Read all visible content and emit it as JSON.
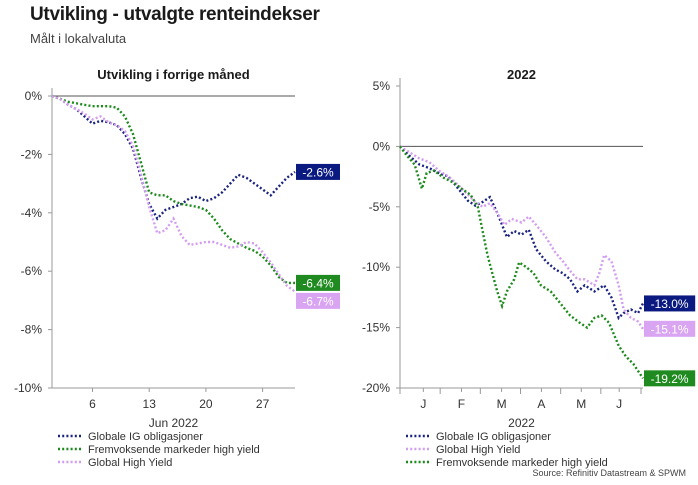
{
  "header": {
    "title": "Utvikling - utvalgte renteindekser",
    "subtitle": "Målt i lokalvaluta"
  },
  "footer": {
    "source": "Source: Refinitiv Datastream & SPWM"
  },
  "colors": {
    "ig": "#1a237e",
    "em_hy": "#1a8a1a",
    "global_hy": "#d49cf0",
    "end_ig": "#0b1a80",
    "end_em": "#1f8a1f",
    "end_hy": "#d9a4f2"
  },
  "chart_data": [
    {
      "type": "line",
      "title": "Utvikling i forrige måned",
      "xlabel": "Jun 2022",
      "xlim": [
        1,
        31
      ],
      "ylim": [
        -10,
        0
      ],
      "yticks": [
        0,
        -2,
        -4,
        -6,
        -8,
        -10
      ],
      "ytick_labels": [
        "0%",
        "-2%",
        "-4%",
        "-6%",
        "-8%",
        "-10%"
      ],
      "xticks": [
        6,
        13,
        20,
        27
      ],
      "xtick_labels": [
        "6",
        "13",
        "20",
        "27"
      ],
      "legend": [
        "Globale IG obligasjoner",
        "Fremvoksende markeder high yield",
        "Global High Yield"
      ],
      "series": [
        {
          "name": "Globale IG obligasjoner",
          "color_key": "ig",
          "end_label": "-2.6%",
          "points": [
            [
              1,
              0
            ],
            [
              2,
              -0.1
            ],
            [
              3,
              -0.3
            ],
            [
              4,
              -0.45
            ],
            [
              5,
              -0.7
            ],
            [
              6,
              -0.95
            ],
            [
              7,
              -0.85
            ],
            [
              8,
              -0.9
            ],
            [
              9,
              -1.0
            ],
            [
              10,
              -1.3
            ],
            [
              11,
              -1.8
            ],
            [
              12,
              -2.8
            ],
            [
              13,
              -3.7
            ],
            [
              14,
              -4.2
            ],
            [
              15,
              -3.9
            ],
            [
              16,
              -3.8
            ],
            [
              17,
              -3.7
            ],
            [
              18,
              -3.5
            ],
            [
              19,
              -3.45
            ],
            [
              20,
              -3.6
            ],
            [
              21,
              -3.5
            ],
            [
              22,
              -3.3
            ],
            [
              23,
              -3.0
            ],
            [
              24,
              -2.7
            ],
            [
              25,
              -2.8
            ],
            [
              26,
              -3.0
            ],
            [
              27,
              -3.2
            ],
            [
              28,
              -3.4
            ],
            [
              29,
              -3.1
            ],
            [
              30,
              -2.8
            ],
            [
              31,
              -2.6
            ]
          ]
        },
        {
          "name": "Fremvoksende markeder high yield",
          "color_key": "em_hy",
          "end_label": "-6.4%",
          "points": [
            [
              1,
              0
            ],
            [
              2,
              -0.1
            ],
            [
              3,
              -0.2
            ],
            [
              4,
              -0.25
            ],
            [
              5,
              -0.3
            ],
            [
              6,
              -0.35
            ],
            [
              7,
              -0.35
            ],
            [
              8,
              -0.35
            ],
            [
              9,
              -0.4
            ],
            [
              10,
              -0.7
            ],
            [
              11,
              -1.3
            ],
            [
              12,
              -2.3
            ],
            [
              13,
              -3.3
            ],
            [
              14,
              -3.4
            ],
            [
              15,
              -3.4
            ],
            [
              16,
              -3.6
            ],
            [
              17,
              -3.7
            ],
            [
              18,
              -3.75
            ],
            [
              19,
              -3.8
            ],
            [
              20,
              -3.9
            ],
            [
              21,
              -4.2
            ],
            [
              22,
              -4.6
            ],
            [
              23,
              -4.9
            ],
            [
              24,
              -5.05
            ],
            [
              25,
              -5.2
            ],
            [
              26,
              -5.3
            ],
            [
              27,
              -5.5
            ],
            [
              28,
              -5.8
            ],
            [
              29,
              -6.2
            ],
            [
              30,
              -6.4
            ],
            [
              31,
              -6.4
            ]
          ]
        },
        {
          "name": "Global High Yield",
          "color_key": "global_hy",
          "end_label": "-6.7%",
          "points": [
            [
              1,
              0
            ],
            [
              2,
              -0.1
            ],
            [
              3,
              -0.3
            ],
            [
              4,
              -0.45
            ],
            [
              5,
              -0.6
            ],
            [
              6,
              -0.8
            ],
            [
              7,
              -0.7
            ],
            [
              8,
              -0.9
            ],
            [
              9,
              -1.0
            ],
            [
              10,
              -1.2
            ],
            [
              11,
              -1.7
            ],
            [
              12,
              -2.7
            ],
            [
              13,
              -3.8
            ],
            [
              14,
              -4.7
            ],
            [
              15,
              -4.6
            ],
            [
              16,
              -4.2
            ],
            [
              17,
              -4.8
            ],
            [
              18,
              -5.1
            ],
            [
              19,
              -5.05
            ],
            [
              20,
              -5.0
            ],
            [
              21,
              -5.0
            ],
            [
              22,
              -5.1
            ],
            [
              23,
              -5.2
            ],
            [
              24,
              -5.15
            ],
            [
              25,
              -5.0
            ],
            [
              26,
              -5.05
            ],
            [
              27,
              -5.35
            ],
            [
              28,
              -5.7
            ],
            [
              29,
              -6.1
            ],
            [
              30,
              -6.5
            ],
            [
              31,
              -6.7
            ]
          ]
        }
      ]
    },
    {
      "type": "line",
      "title": "2022",
      "xlabel": "2022",
      "xlim": [
        0,
        1
      ],
      "ylim": [
        -20,
        5
      ],
      "yticks": [
        5,
        0,
        -5,
        -10,
        -15,
        -20
      ],
      "ytick_labels": [
        "5%",
        "0%",
        "-5%",
        "-10%",
        "-15%",
        "-20%"
      ],
      "xtick_positions": [
        0.096,
        0.253,
        0.418,
        0.582,
        0.746,
        0.902
      ],
      "xtick_labels": [
        "J",
        "F",
        "M",
        "A",
        "M",
        "J"
      ],
      "legend": [
        "Globale IG obligasjoner",
        "Global High Yield",
        "Fremvoksende markeder high yield"
      ],
      "series": [
        {
          "name": "Globale IG obligasjoner",
          "color_key": "ig",
          "end_label": "-13.0%",
          "points": [
            [
              0,
              0
            ],
            [
              0.04,
              -0.8
            ],
            [
              0.08,
              -1.5
            ],
            [
              0.12,
              -1.8
            ],
            [
              0.16,
              -2.2
            ],
            [
              0.2,
              -2.5
            ],
            [
              0.24,
              -3.5
            ],
            [
              0.28,
              -4.5
            ],
            [
              0.31,
              -4.9
            ],
            [
              0.34,
              -4.6
            ],
            [
              0.37,
              -4.2
            ],
            [
              0.4,
              -5.5
            ],
            [
              0.42,
              -6.5
            ],
            [
              0.44,
              -7.5
            ],
            [
              0.47,
              -7.0
            ],
            [
              0.5,
              -7.3
            ],
            [
              0.53,
              -6.9
            ],
            [
              0.56,
              -8.5
            ],
            [
              0.6,
              -9.5
            ],
            [
              0.64,
              -10.2
            ],
            [
              0.67,
              -10.5
            ],
            [
              0.7,
              -11.0
            ],
            [
              0.73,
              -12.0
            ],
            [
              0.76,
              -11.5
            ],
            [
              0.8,
              -12.0
            ],
            [
              0.84,
              -11.5
            ],
            [
              0.87,
              -12.5
            ],
            [
              0.9,
              -14.2
            ],
            [
              0.92,
              -13.8
            ],
            [
              0.95,
              -13.5
            ],
            [
              0.98,
              -13.8
            ],
            [
              1.0,
              -13.0
            ]
          ]
        },
        {
          "name": "Global High Yield",
          "color_key": "global_hy",
          "end_label": "-15.1%",
          "points": [
            [
              0,
              0
            ],
            [
              0.04,
              -0.5
            ],
            [
              0.08,
              -1.0
            ],
            [
              0.12,
              -1.3
            ],
            [
              0.16,
              -2.0
            ],
            [
              0.2,
              -2.5
            ],
            [
              0.24,
              -3.2
            ],
            [
              0.28,
              -4.0
            ],
            [
              0.31,
              -4.6
            ],
            [
              0.34,
              -5.0
            ],
            [
              0.37,
              -4.7
            ],
            [
              0.4,
              -5.5
            ],
            [
              0.43,
              -6.5
            ],
            [
              0.46,
              -6.0
            ],
            [
              0.5,
              -6.3
            ],
            [
              0.53,
              -5.8
            ],
            [
              0.56,
              -6.5
            ],
            [
              0.6,
              -7.5
            ],
            [
              0.64,
              -8.8
            ],
            [
              0.67,
              -9.5
            ],
            [
              0.7,
              -10.3
            ],
            [
              0.73,
              -11.0
            ],
            [
              0.76,
              -11.0
            ],
            [
              0.8,
              -11.5
            ],
            [
              0.82,
              -10.5
            ],
            [
              0.84,
              -9.0
            ],
            [
              0.87,
              -9.5
            ],
            [
              0.9,
              -11.5
            ],
            [
              0.92,
              -13.5
            ],
            [
              0.95,
              -14.2
            ],
            [
              0.98,
              -14.5
            ],
            [
              1.0,
              -15.1
            ]
          ]
        },
        {
          "name": "Fremvoksende markeder high yield",
          "color_key": "em_hy",
          "end_label": "-19.2%",
          "points": [
            [
              0,
              0
            ],
            [
              0.03,
              -0.8
            ],
            [
              0.06,
              -1.5
            ],
            [
              0.09,
              -3.5
            ],
            [
              0.11,
              -2.2
            ],
            [
              0.14,
              -2.0
            ],
            [
              0.18,
              -2.6
            ],
            [
              0.22,
              -3.0
            ],
            [
              0.26,
              -3.6
            ],
            [
              0.29,
              -4.0
            ],
            [
              0.32,
              -5.0
            ],
            [
              0.34,
              -7.0
            ],
            [
              0.36,
              -9.0
            ],
            [
              0.38,
              -10.5
            ],
            [
              0.4,
              -12.0
            ],
            [
              0.42,
              -13.2
            ],
            [
              0.44,
              -12.0
            ],
            [
              0.47,
              -11.0
            ],
            [
              0.49,
              -9.6
            ],
            [
              0.52,
              -10.0
            ],
            [
              0.55,
              -10.5
            ],
            [
              0.58,
              -11.5
            ],
            [
              0.62,
              -12.0
            ],
            [
              0.66,
              -13.0
            ],
            [
              0.7,
              -14.0
            ],
            [
              0.74,
              -14.6
            ],
            [
              0.77,
              -15.0
            ],
            [
              0.8,
              -14.2
            ],
            [
              0.83,
              -14.0
            ],
            [
              0.86,
              -14.6
            ],
            [
              0.9,
              -16.5
            ],
            [
              0.93,
              -17.4
            ],
            [
              0.96,
              -18.0
            ],
            [
              1.0,
              -19.2
            ]
          ]
        }
      ]
    }
  ]
}
